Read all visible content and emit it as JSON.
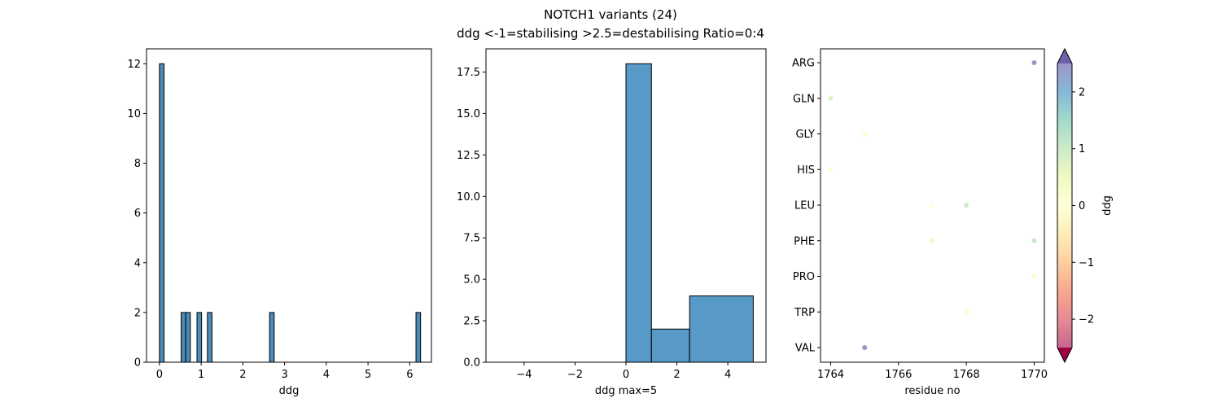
{
  "figure": {
    "title_line1": "NOTCH1 variants (24)",
    "title_line2": "ddg <-1=stabilising >2.5=destabilising Ratio=0:4"
  },
  "chart_data": [
    {
      "type": "bar",
      "xlabel": "ddg",
      "ylabel": "",
      "xlim": [
        -0.31,
        6.52
      ],
      "ylim": [
        0,
        12.6
      ],
      "xticks": [
        0,
        1,
        2,
        3,
        4,
        5,
        6
      ],
      "yticks": [
        0,
        2,
        4,
        6,
        8,
        10,
        12
      ],
      "bar_color": "#4c8ab8",
      "bins": [
        {
          "x0": 0.0,
          "x1": 0.11,
          "count": 12
        },
        {
          "x0": 0.52,
          "x1": 0.63,
          "count": 2
        },
        {
          "x0": 0.63,
          "x1": 0.74,
          "count": 2
        },
        {
          "x0": 0.9,
          "x1": 1.01,
          "count": 2
        },
        {
          "x0": 1.15,
          "x1": 1.26,
          "count": 2
        },
        {
          "x0": 2.64,
          "x1": 2.75,
          "count": 2
        },
        {
          "x0": 6.15,
          "x1": 6.26,
          "count": 2
        }
      ]
    },
    {
      "type": "bar",
      "xlabel": "ddg max=5",
      "ylabel": "",
      "xlim": [
        -5.5,
        5.5
      ],
      "ylim": [
        0,
        18.9
      ],
      "xticks": [
        -4,
        -2,
        0,
        2,
        4
      ],
      "yticks": [
        0.0,
        2.5,
        5.0,
        7.5,
        10.0,
        12.5,
        15.0,
        17.5
      ],
      "bar_color": "#5799c7",
      "bins": [
        {
          "x0": -5,
          "x1": -1,
          "count": 0
        },
        {
          "x0": -1,
          "x1": 0,
          "count": 0
        },
        {
          "x0": 0,
          "x1": 1,
          "count": 18
        },
        {
          "x0": 1,
          "x1": 2.5,
          "count": 2
        },
        {
          "x0": 2.5,
          "x1": 5,
          "count": 4
        }
      ]
    },
    {
      "type": "scatter",
      "xlabel": "residue no",
      "ylabel": "",
      "xlim": [
        1763.7,
        1770.3
      ],
      "xticks": [
        1764,
        1766,
        1768,
        1770
      ],
      "categories": [
        "ARG",
        "GLN",
        "GLY",
        "HIS",
        "LEU",
        "PHE",
        "PRO",
        "TRP",
        "VAL"
      ],
      "points": [
        {
          "x": 1770,
          "y": "ARG",
          "ddg": 2.5
        },
        {
          "x": 1764,
          "y": "GLN",
          "ddg": 0.8
        },
        {
          "x": 1765,
          "y": "GLY",
          "ddg": 0.1
        },
        {
          "x": 1764,
          "y": "HIS",
          "ddg": 0.2
        },
        {
          "x": 1767,
          "y": "LEU",
          "ddg": 0.0
        },
        {
          "x": 1768,
          "y": "LEU",
          "ddg": 1.0
        },
        {
          "x": 1767,
          "y": "PHE",
          "ddg": 0.4
        },
        {
          "x": 1770,
          "y": "PHE",
          "ddg": 1.1
        },
        {
          "x": 1770,
          "y": "PRO",
          "ddg": 0.2
        },
        {
          "x": 1768,
          "y": "TRP",
          "ddg": 0.1
        },
        {
          "x": 1765,
          "y": "VAL",
          "ddg": 2.5
        }
      ],
      "colorbar": {
        "label": "ddg",
        "range": [
          -2.5,
          2.5
        ],
        "ticks": [
          -2,
          -1,
          0,
          1,
          2
        ],
        "tick_labels": [
          "−2",
          "−1",
          "0",
          "1",
          "2"
        ],
        "colormap": "Spectral"
      }
    }
  ]
}
